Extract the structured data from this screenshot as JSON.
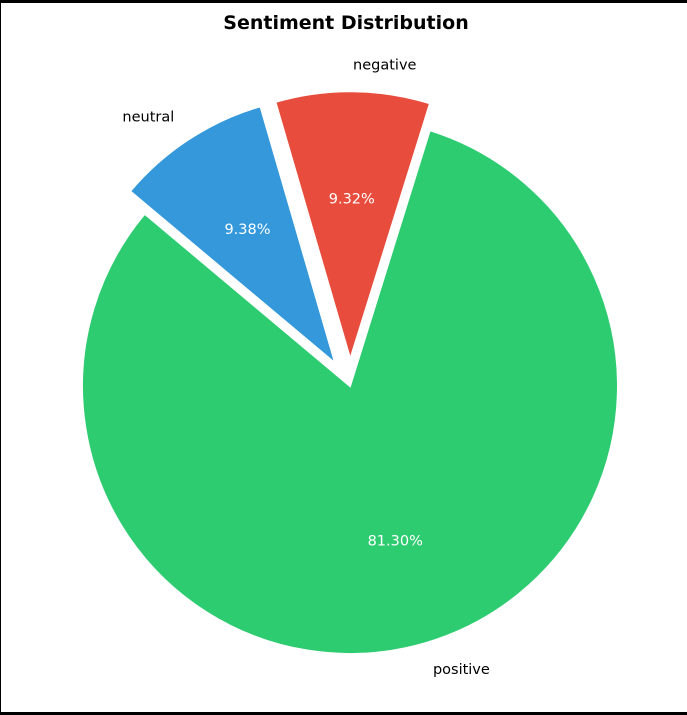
{
  "chart_data": {
    "type": "pie",
    "title": "Sentiment Distribution",
    "categories": [
      "positive",
      "negative",
      "neutral"
    ],
    "values": [
      81.3,
      9.32,
      9.38
    ],
    "value_labels": [
      "81.30%",
      "9.32%",
      "9.38%"
    ],
    "colors": [
      "#2ecc71",
      "#e74c3c",
      "#3498db"
    ],
    "exploded": [
      false,
      true,
      true
    ],
    "legend": "none"
  }
}
